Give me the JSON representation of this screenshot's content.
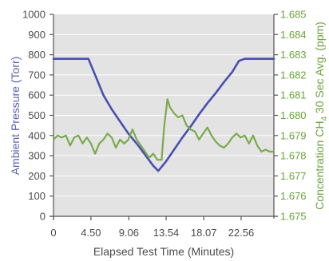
{
  "chart_data": {
    "type": "line",
    "xlabel": "Elapsed Test Time (Minutes)",
    "ylabel_left": "Ambient Pressure (Torr)",
    "ylabel_right_parts": [
      "Concentration CH",
      "4",
      " 30 Sec Avg. (ppm)"
    ],
    "x_ticks": [
      "0",
      "4.50",
      "9.06",
      "13.54",
      "18.07",
      "22.56"
    ],
    "x_tick_values": [
      0,
      4.5,
      9.06,
      13.54,
      18.07,
      22.56
    ],
    "xlim": [
      0,
      26.5
    ],
    "ylim_left": [
      0,
      1000
    ],
    "ylim_right": [
      1.675,
      1.685
    ],
    "left_ticks": [
      "0",
      "100",
      "200",
      "300",
      "400",
      "500",
      "600",
      "700",
      "800",
      "900",
      "1000"
    ],
    "right_ticks": [
      "1.675",
      "1.676",
      "1.677",
      "1.678",
      "1.679",
      "1.680",
      "1.681",
      "1.682",
      "1.683",
      "1.684",
      "1.685"
    ],
    "colors": {
      "pressure": "#4a4fb0",
      "concentration": "#7aaa4c",
      "plot_bg": "#e3e3e3",
      "left_axis_text": "#5a5fb5",
      "right_axis_text": "#6aa33a"
    },
    "series": [
      {
        "axis": "left",
        "color": "#4a4fb0",
        "x": [
          0,
          2.0,
          4.2,
          5.0,
          6.0,
          7.0,
          8.0,
          9.0,
          10.0,
          11.0,
          12.0,
          12.6,
          13.5,
          14.5,
          15.5,
          16.5,
          17.5,
          18.5,
          19.5,
          20.5,
          21.5,
          22.3,
          23.0,
          24.0,
          26.5
        ],
        "y": [
          780,
          780,
          780,
          700,
          600,
          530,
          470,
          410,
          360,
          305,
          250,
          225,
          270,
          330,
          390,
          445,
          505,
          560,
          610,
          665,
          715,
          770,
          780,
          780,
          780
        ]
      },
      {
        "axis": "right",
        "color": "#7aaa4c",
        "x": [
          0,
          0.5,
          1.0,
          1.5,
          2.0,
          2.5,
          3.0,
          3.5,
          4.0,
          4.5,
          5.0,
          5.5,
          6.0,
          6.5,
          7.0,
          7.5,
          8.0,
          8.5,
          9.0,
          9.5,
          10.0,
          10.5,
          11.0,
          11.5,
          12.0,
          12.5,
          13.0,
          13.3,
          13.7,
          14.0,
          14.5,
          15.0,
          15.5,
          16.0,
          16.5,
          17.0,
          17.5,
          18.0,
          18.5,
          19.0,
          19.5,
          20.0,
          20.5,
          21.0,
          21.5,
          22.0,
          22.5,
          23.0,
          23.5,
          24.0,
          24.5,
          25.0,
          25.5,
          26.0,
          26.5
        ],
        "y": [
          1.6788,
          1.679,
          1.6789,
          1.679,
          1.6785,
          1.6789,
          1.679,
          1.6786,
          1.6789,
          1.6786,
          1.6781,
          1.6786,
          1.6788,
          1.6791,
          1.6789,
          1.6784,
          1.6788,
          1.6786,
          1.6788,
          1.6793,
          1.6788,
          1.6785,
          1.6782,
          1.6779,
          1.6781,
          1.6778,
          1.6778,
          1.6794,
          1.6808,
          1.6804,
          1.6801,
          1.6799,
          1.68,
          1.6795,
          1.6793,
          1.6792,
          1.6788,
          1.6791,
          1.6794,
          1.679,
          1.6787,
          1.6785,
          1.6784,
          1.6786,
          1.6789,
          1.6791,
          1.6789,
          1.679,
          1.6786,
          1.679,
          1.6785,
          1.6782,
          1.6783,
          1.6782,
          1.6782
        ]
      }
    ],
    "grid": true
  }
}
